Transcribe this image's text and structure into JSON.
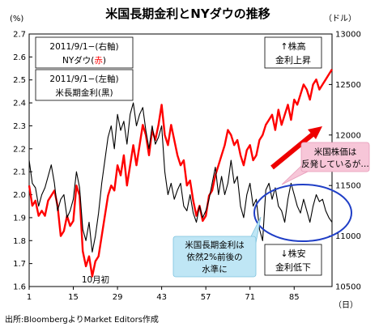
{
  "chart_data": {
    "type": "line",
    "title": "米国長期金利とNYダウの推移",
    "left_unit": "(%)",
    "right_unit": "（ドル）",
    "x_unit": "（日）",
    "source": "出所:BloombergよりMarket Editors作成",
    "x_ticks": [
      1,
      15,
      29,
      43,
      57,
      71,
      85
    ],
    "y_left": {
      "min": 1.6,
      "max": 2.7,
      "ticks": [
        1.6,
        1.7,
        1.8,
        1.9,
        2.0,
        2.1,
        2.2,
        2.3,
        2.4,
        2.5,
        2.6,
        2.7
      ]
    },
    "y_right": {
      "min": 10500,
      "max": 13000,
      "ticks": [
        10500,
        11000,
        11500,
        12000,
        12500,
        13000
      ]
    },
    "legend": {
      "dow_line1": "2011/9/1−(右軸)",
      "dow_line2_prefix": "NYダウ(",
      "dow_line2_color_word": "赤",
      "dow_line2_suffix": ")",
      "yield_line1": "2011/9/1−(左軸)",
      "yield_line2": "米長期金利(黒)"
    },
    "annotations": {
      "upper_right_1": "↑株高",
      "upper_right_2": "金利上昇",
      "lower_right_1": "↓株安",
      "lower_right_2": "金利低下",
      "low_label": "10月初",
      "pink_1": "米国株価は",
      "pink_2": "反発しているが…",
      "blue_1": "米国長期金利は",
      "blue_2": "依然2%前後の",
      "blue_3": "水準に"
    },
    "series": [
      {
        "axis": "right",
        "color": "#ff0000",
        "x": [
          1,
          2,
          3,
          4,
          5,
          6,
          7,
          8,
          9,
          10,
          11,
          12,
          13,
          14,
          15,
          16,
          17,
          18,
          19,
          20,
          21,
          22,
          23,
          24,
          25,
          26,
          27,
          28,
          29,
          30,
          31,
          32,
          33,
          34,
          35,
          36,
          37,
          38,
          39,
          40,
          41,
          42,
          43,
          44,
          45,
          46,
          47,
          48,
          49,
          50,
          51,
          52,
          53,
          54,
          55,
          56,
          57,
          58,
          59,
          60,
          61,
          62,
          63,
          64,
          65,
          66,
          67,
          68,
          69,
          70,
          71,
          72,
          73,
          74,
          75,
          76,
          77,
          78,
          79,
          80,
          81,
          82,
          83,
          84,
          85,
          86,
          87,
          88,
          89,
          90,
          91,
          92,
          93,
          94,
          95,
          96,
          97
        ],
        "values": [
          11500,
          11300,
          11350,
          11200,
          11250,
          11200,
          11350,
          11400,
          11450,
          11300,
          11000,
          11050,
          11200,
          11100,
          11150,
          11500,
          11400,
          10850,
          10700,
          10800,
          10600,
          10750,
          10800,
          11000,
          11200,
          11400,
          11500,
          11450,
          11700,
          11600,
          11800,
          11500,
          11700,
          11900,
          11700,
          11900,
          12100,
          12000,
          11800,
          12050,
          11950,
          12100,
          12300,
          12000,
          11900,
          12100,
          11950,
          11800,
          11700,
          11750,
          11500,
          11550,
          11350,
          11200,
          11300,
          11150,
          11200,
          11400,
          11450,
          11600,
          11700,
          11800,
          11900,
          12050,
          12000,
          11900,
          11950,
          11800,
          11700,
          11850,
          11900,
          11750,
          11800,
          11950,
          12000,
          12100,
          12150,
          12200,
          12050,
          12250,
          12100,
          12200,
          12300,
          12150,
          12350,
          12300,
          12400,
          12500,
          12450,
          12350,
          12500,
          12550,
          12450,
          12500,
          12550,
          12600,
          12650
        ]
      },
      {
        "axis": "left",
        "color": "#000000",
        "x": [
          1,
          2,
          3,
          4,
          5,
          6,
          7,
          8,
          9,
          10,
          11,
          12,
          13,
          14,
          15,
          16,
          17,
          18,
          19,
          20,
          21,
          22,
          23,
          24,
          25,
          26,
          27,
          28,
          29,
          30,
          31,
          32,
          33,
          34,
          35,
          36,
          37,
          38,
          39,
          40,
          41,
          42,
          43,
          44,
          45,
          46,
          47,
          48,
          49,
          50,
          51,
          52,
          53,
          54,
          55,
          56,
          57,
          58,
          59,
          60,
          61,
          62,
          63,
          64,
          65,
          66,
          67,
          68,
          69,
          70,
          71,
          72,
          73,
          74,
          75,
          76,
          77,
          78,
          79,
          80,
          81,
          82,
          83,
          84,
          85,
          86,
          87,
          88,
          89,
          90,
          91,
          92,
          93,
          94,
          95,
          96,
          97
        ],
        "values": [
          2.15,
          2.05,
          2.03,
          1.95,
          2.0,
          2.03,
          2.08,
          2.13,
          2.05,
          1.93,
          1.98,
          2.0,
          1.9,
          1.93,
          1.98,
          2.1,
          2.03,
          1.85,
          1.8,
          1.88,
          1.75,
          1.82,
          1.92,
          2.05,
          2.15,
          2.25,
          2.3,
          2.2,
          2.35,
          2.28,
          2.32,
          2.22,
          2.35,
          2.4,
          2.3,
          2.35,
          2.38,
          2.28,
          2.2,
          2.3,
          2.22,
          2.25,
          2.3,
          2.1,
          2.0,
          2.05,
          1.98,
          2.02,
          2.05,
          1.95,
          1.93,
          2.0,
          1.92,
          1.88,
          1.95,
          1.9,
          1.93,
          1.98,
          2.05,
          2.12,
          2.0,
          2.08,
          2.0,
          2.05,
          2.15,
          2.05,
          2.08,
          1.95,
          1.9,
          2.0,
          2.05,
          1.95,
          1.98,
          1.85,
          1.8,
          2.02,
          2.05,
          1.98,
          2.03,
          1.95,
          1.93,
          1.88,
          1.98,
          2.05,
          2.0,
          1.95,
          1.92,
          1.98,
          1.93,
          1.88,
          1.95,
          2.0,
          1.97,
          1.98,
          1.93,
          1.9,
          1.88
        ]
      }
    ]
  }
}
